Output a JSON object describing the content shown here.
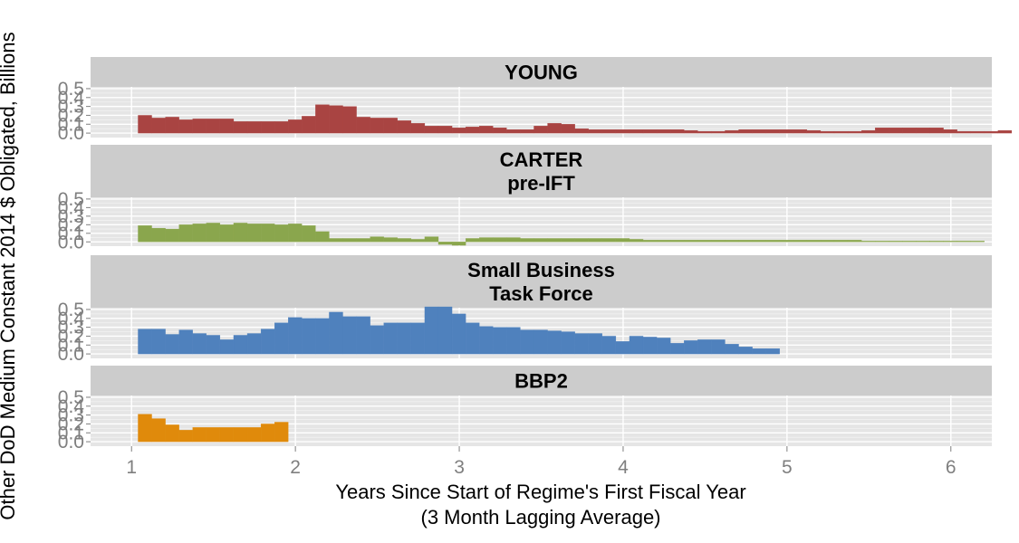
{
  "chart_data": {
    "type": "bar",
    "xlabel": "Years Since Start of Regime's First Fiscal Year\n(3 Month Lagging Average)",
    "ylabel": "Other DoD Medium Constant 2014 $ Obligated, Billions",
    "xlim": [
      0.75,
      6.25
    ],
    "x_ticks": [
      1,
      2,
      3,
      4,
      5,
      6
    ],
    "ylim": [
      -0.05,
      0.52
    ],
    "y_ticks": [
      0.0,
      0.1,
      0.2,
      0.3,
      0.4,
      0.5
    ],
    "y_tick_labels": [
      "0.0",
      "0.1",
      "0.2",
      "0.3",
      "0.4",
      "0.5"
    ],
    "bin_width": 0.0833,
    "panels": [
      {
        "title": "YOUNG",
        "color": "#A94442",
        "x_start": 1.04,
        "values": [
          0.2,
          0.17,
          0.18,
          0.15,
          0.16,
          0.16,
          0.16,
          0.13,
          0.13,
          0.13,
          0.13,
          0.15,
          0.19,
          0.32,
          0.31,
          0.3,
          0.18,
          0.17,
          0.17,
          0.14,
          0.11,
          0.08,
          0.08,
          0.06,
          0.07,
          0.08,
          0.06,
          0.04,
          0.04,
          0.08,
          0.11,
          0.1,
          0.05,
          0.04,
          0.04,
          0.04,
          0.04,
          0.04,
          0.04,
          0.04,
          0.03,
          0.02,
          0.02,
          0.03,
          0.04,
          0.04,
          0.04,
          0.04,
          0.04,
          0.03,
          0.02,
          0.02,
          0.02,
          0.03,
          0.06,
          0.06,
          0.06,
          0.06,
          0.06,
          0.04,
          0.02,
          0.02,
          0.02,
          0.03
        ]
      },
      {
        "title": "CARTER\npre-IFT",
        "color": "#8AA64D",
        "x_start": 1.04,
        "values": [
          0.19,
          0.16,
          0.15,
          0.2,
          0.21,
          0.22,
          0.2,
          0.22,
          0.21,
          0.21,
          0.2,
          0.21,
          0.19,
          0.12,
          0.04,
          0.04,
          0.04,
          0.06,
          0.05,
          0.04,
          0.03,
          0.06,
          -0.03,
          -0.04,
          0.04,
          0.05,
          0.05,
          0.05,
          0.04,
          0.04,
          0.04,
          0.04,
          0.04,
          0.04,
          0.04,
          0.04,
          0.03,
          0.02,
          0.02,
          0.02,
          0.02,
          0.02,
          0.02,
          0.02,
          0.02,
          0.02,
          0.02,
          0.02,
          0.02,
          0.02,
          0.02,
          0.02,
          0.02,
          0.01,
          0.01,
          0.01,
          0.01,
          0.01,
          0.01,
          0.01,
          0.01,
          0.01
        ]
      },
      {
        "title": "Small Business\nTask Force",
        "color": "#4F81BD",
        "x_start": 1.04,
        "values": [
          0.28,
          0.28,
          0.22,
          0.27,
          0.23,
          0.21,
          0.16,
          0.21,
          0.23,
          0.28,
          0.35,
          0.41,
          0.4,
          0.4,
          0.47,
          0.42,
          0.42,
          0.32,
          0.35,
          0.35,
          0.35,
          0.53,
          0.53,
          0.45,
          0.35,
          0.31,
          0.3,
          0.3,
          0.27,
          0.27,
          0.26,
          0.25,
          0.23,
          0.23,
          0.2,
          0.14,
          0.2,
          0.19,
          0.18,
          0.12,
          0.15,
          0.16,
          0.16,
          0.11,
          0.08,
          0.06,
          0.06
        ]
      },
      {
        "title": "BBP2",
        "color": "#E08A0B",
        "x_start": 1.04,
        "values": [
          0.31,
          0.26,
          0.19,
          0.13,
          0.16,
          0.16,
          0.16,
          0.16,
          0.16,
          0.2,
          0.22
        ]
      }
    ]
  }
}
